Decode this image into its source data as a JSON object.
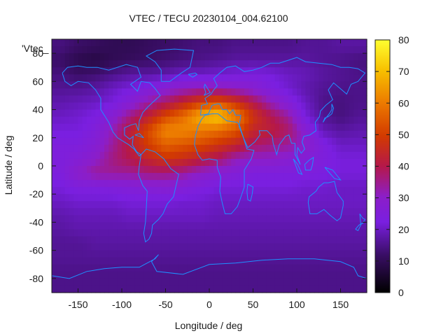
{
  "chart_data": {
    "type": "heatmap",
    "title": "VTEC / TECU 20230104_004.62100",
    "xlabel": "Longitude / deg",
    "ylabel": "Latitude / deg",
    "series_key": "'Vtec_",
    "xlim": [
      -180,
      180
    ],
    "ylim": [
      -90,
      90
    ],
    "x_ticks": [
      -150,
      -100,
      -50,
      0,
      50,
      100,
      150
    ],
    "y_ticks": [
      -80,
      -60,
      -40,
      -20,
      0,
      20,
      40,
      60,
      80
    ],
    "colorbar": {
      "min": 0,
      "max": 80,
      "ticks": [
        0,
        10,
        20,
        30,
        40,
        50,
        60,
        70,
        80
      ]
    },
    "value_grid": {
      "lon_step": 20,
      "lat_step": 10,
      "lon_start": -180,
      "lat_start": 90,
      "rows": [
        [
          14,
          12,
          11,
          10,
          10,
          11,
          12,
          13,
          14,
          14,
          15,
          15,
          15,
          15,
          16,
          16,
          17,
          17
        ],
        [
          12,
          9,
          8,
          10,
          11,
          12,
          13,
          14,
          15,
          16,
          17,
          17,
          17,
          17,
          17,
          16,
          15,
          14
        ],
        [
          14,
          12,
          13,
          15,
          17,
          17,
          18,
          20,
          20,
          21,
          22,
          23,
          22,
          20,
          19,
          17,
          16,
          15
        ],
        [
          16,
          16,
          17,
          20,
          22,
          25,
          28,
          30,
          32,
          32,
          30,
          28,
          24,
          21,
          18,
          16,
          15,
          15
        ],
        [
          18,
          19,
          20,
          22,
          27,
          33,
          38,
          44,
          50,
          54,
          48,
          40,
          32,
          26,
          20,
          15,
          14,
          15
        ],
        [
          20,
          21,
          23,
          28,
          36,
          43,
          52,
          58,
          68,
          72,
          62,
          48,
          40,
          34,
          22,
          16,
          14,
          16
        ],
        [
          22,
          22,
          25,
          32,
          42,
          52,
          62,
          62,
          60,
          58,
          54,
          44,
          42,
          38,
          28,
          19,
          17,
          18
        ],
        [
          24,
          24,
          27,
          34,
          42,
          50,
          56,
          54,
          52,
          48,
          44,
          38,
          36,
          34,
          30,
          24,
          20,
          20
        ],
        [
          24,
          26,
          30,
          36,
          40,
          44,
          48,
          46,
          42,
          38,
          32,
          30,
          30,
          28,
          26,
          24,
          22,
          22
        ],
        [
          24,
          30,
          34,
          34,
          34,
          36,
          36,
          34,
          30,
          28,
          26,
          24,
          24,
          24,
          24,
          23,
          22,
          22
        ],
        [
          22,
          24,
          24,
          25,
          26,
          27,
          28,
          26,
          24,
          22,
          22,
          22,
          22,
          22,
          21,
          21,
          20,
          20
        ],
        [
          20,
          21,
          21,
          21,
          22,
          22,
          22,
          21,
          21,
          20,
          20,
          20,
          20,
          20,
          20,
          20,
          20,
          20
        ],
        [
          18,
          19,
          19,
          19,
          20,
          20,
          20,
          20,
          20,
          19,
          19,
          19,
          19,
          19,
          19,
          19,
          19,
          19
        ],
        [
          17,
          18,
          18,
          18,
          18,
          18,
          18,
          18,
          18,
          18,
          18,
          18,
          18,
          18,
          18,
          18,
          18,
          18
        ],
        [
          16,
          16,
          17,
          17,
          17,
          17,
          17,
          17,
          17,
          17,
          17,
          17,
          17,
          17,
          17,
          17,
          17,
          17
        ],
        [
          16,
          16,
          16,
          16,
          16,
          16,
          16,
          16,
          16,
          16,
          16,
          16,
          16,
          16,
          16,
          16,
          16,
          16
        ],
        [
          15,
          15,
          15,
          15,
          15,
          15,
          15,
          15,
          15,
          15,
          15,
          15,
          15,
          15,
          15,
          15,
          15,
          15
        ],
        [
          15,
          15,
          15,
          15,
          15,
          15,
          15,
          15,
          15,
          15,
          15,
          15,
          15,
          15,
          15,
          15,
          15,
          15
        ]
      ]
    },
    "overlay": "coastlines",
    "overlay_color": "#1e90ff"
  },
  "colors": {
    "axis": "#1a1a1a",
    "coast": "#1e90ff",
    "background": "#ffffff"
  }
}
